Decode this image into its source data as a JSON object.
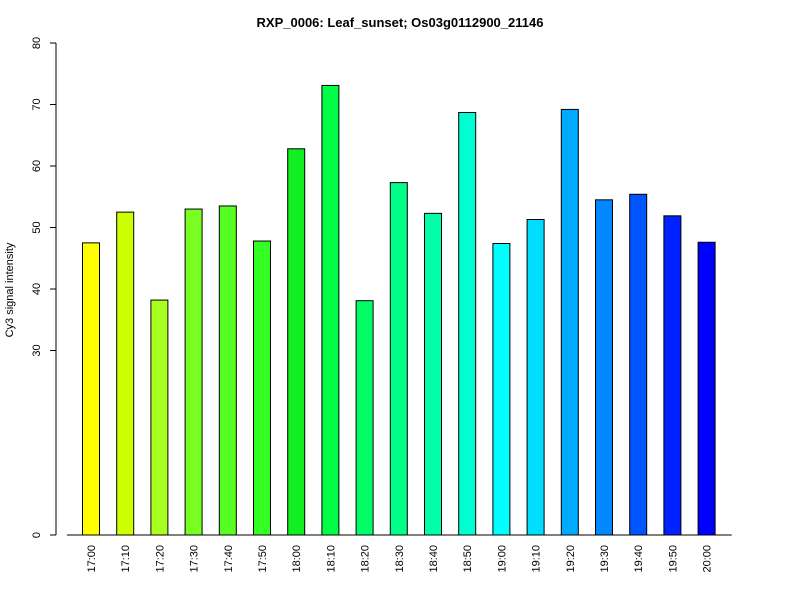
{
  "chart_data": {
    "type": "bar",
    "title": "RXP_0006: Leaf_sunset; Os03g0112900_21146",
    "xlabel": "",
    "ylabel": "Cy3 signal intensity",
    "categories": [
      "17:00",
      "17:10",
      "17:20",
      "17:30",
      "17:40",
      "17:50",
      "18:00",
      "18:10",
      "18:20",
      "18:30",
      "18:40",
      "18:50",
      "19:00",
      "19:10",
      "19:20",
      "19:30",
      "19:40",
      "19:50",
      "20:00"
    ],
    "values": [
      47.5,
      52.5,
      38.2,
      53.0,
      53.5,
      47.8,
      62.8,
      73.1,
      38.1,
      57.3,
      52.3,
      68.7,
      47.4,
      51.3,
      69.2,
      54.5,
      55.4,
      51.9,
      47.6
    ],
    "colors": [
      "#ffff00",
      "#ccff00",
      "#aaff22",
      "#77ff22",
      "#55ff22",
      "#33ff22",
      "#11ee22",
      "#00ff44",
      "#00ff66",
      "#00ff88",
      "#00ffaa",
      "#00ffd0",
      "#00ffff",
      "#00ddff",
      "#00aaff",
      "#0088ff",
      "#0055ff",
      "#0022ff",
      "#0000ff"
    ],
    "yticks": [
      0,
      30,
      40,
      50,
      60,
      70,
      80
    ],
    "grid": false,
    "legend": "none"
  }
}
